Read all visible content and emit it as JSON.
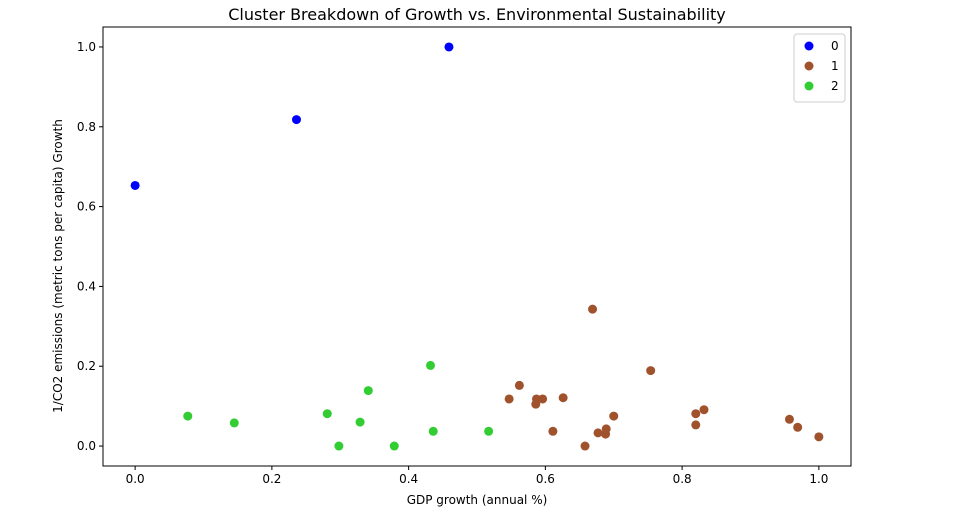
{
  "chart_data": {
    "type": "scatter",
    "title": "Cluster Breakdown of Growth vs. Environmental Sustainability",
    "xlabel": "GDP growth (annual %)",
    "ylabel": "1/CO2 emissions (metric tons per capita) Growth",
    "xlim": [
      -0.047,
      1.047
    ],
    "ylim": [
      -0.05,
      1.05
    ],
    "xticks": [
      "0.0",
      "0.2",
      "0.4",
      "0.6",
      "0.8",
      "1.0"
    ],
    "yticks": [
      "0.0",
      "0.2",
      "0.4",
      "0.6",
      "0.8",
      "1.0"
    ],
    "grid": false,
    "legend_position": "top-right",
    "series": [
      {
        "name": "0",
        "color": "#0000ff",
        "points": [
          [
            0.0,
            0.653
          ],
          [
            0.236,
            0.818
          ],
          [
            0.459,
            1.0
          ]
        ]
      },
      {
        "name": "1",
        "color": "#a0522d",
        "points": [
          [
            0.547,
            0.118
          ],
          [
            0.562,
            0.152
          ],
          [
            0.586,
            0.105
          ],
          [
            0.587,
            0.118
          ],
          [
            0.596,
            0.118
          ],
          [
            0.611,
            0.037
          ],
          [
            0.626,
            0.121
          ],
          [
            0.658,
            0.0
          ],
          [
            0.669,
            0.343
          ],
          [
            0.677,
            0.033
          ],
          [
            0.688,
            0.03
          ],
          [
            0.689,
            0.043
          ],
          [
            0.7,
            0.075
          ],
          [
            0.754,
            0.189
          ],
          [
            0.82,
            0.053
          ],
          [
            0.82,
            0.081
          ],
          [
            0.832,
            0.091
          ],
          [
            0.957,
            0.067
          ],
          [
            0.969,
            0.047
          ],
          [
            1.0,
            0.023
          ]
        ]
      },
      {
        "name": "2",
        "color": "#32cd32",
        "points": [
          [
            0.077,
            0.075
          ],
          [
            0.145,
            0.058
          ],
          [
            0.281,
            0.081
          ],
          [
            0.298,
            0.0
          ],
          [
            0.329,
            0.06
          ],
          [
            0.341,
            0.139
          ],
          [
            0.379,
            0.0
          ],
          [
            0.432,
            0.202
          ],
          [
            0.436,
            0.037
          ],
          [
            0.517,
            0.037
          ]
        ]
      }
    ]
  }
}
